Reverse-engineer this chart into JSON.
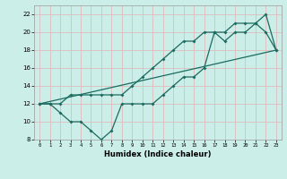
{
  "title": "",
  "xlabel": "Humidex (Indice chaleur)",
  "bg_color": "#cceee8",
  "grid_color": "#ddbbbb",
  "line_color": "#1a6b60",
  "xlim": [
    -0.5,
    23.5
  ],
  "ylim": [
    8,
    23
  ],
  "xticks": [
    0,
    1,
    2,
    3,
    4,
    5,
    6,
    7,
    8,
    9,
    10,
    11,
    12,
    13,
    14,
    15,
    16,
    17,
    18,
    19,
    20,
    21,
    22,
    23
  ],
  "yticks": [
    8,
    10,
    12,
    14,
    16,
    18,
    20,
    22
  ],
  "line1_x": [
    0,
    1,
    2,
    3,
    4,
    5,
    6,
    7,
    8,
    9,
    10,
    11,
    12,
    13,
    14,
    15,
    16,
    17,
    18,
    19,
    20,
    21,
    22,
    23
  ],
  "line1_y": [
    12,
    12,
    11,
    10,
    10,
    9,
    8,
    9,
    12,
    12,
    12,
    12,
    13,
    14,
    15,
    15,
    16,
    20,
    19,
    20,
    20,
    21,
    20,
    18
  ],
  "line2_x": [
    0,
    1,
    2,
    3,
    4,
    5,
    6,
    7,
    8,
    9,
    10,
    11,
    12,
    13,
    14,
    15,
    16,
    17,
    18,
    19,
    20,
    21,
    22,
    23
  ],
  "line2_y": [
    12,
    12,
    12,
    13,
    13,
    13,
    13,
    13,
    13,
    14,
    15,
    16,
    17,
    18,
    19,
    19,
    20,
    20,
    20,
    21,
    21,
    21,
    22,
    18
  ],
  "line3_x": [
    0,
    23
  ],
  "line3_y": [
    12,
    18
  ]
}
